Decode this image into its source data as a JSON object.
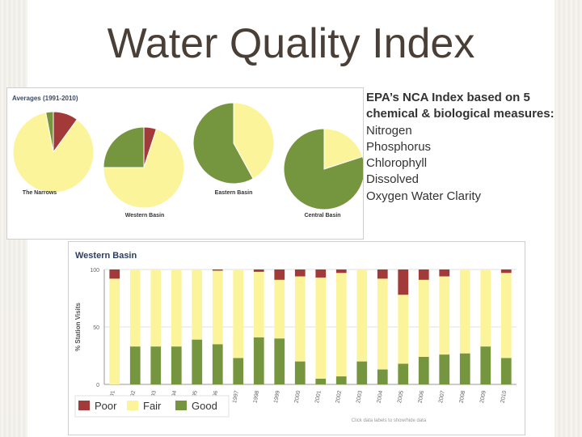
{
  "slide": {
    "title": "Water Quality Index",
    "description": {
      "heading": "EPA’s NCA Index based on 5 chemical & biological measures:",
      "items": [
        "Nitrogen",
        "Phosphorus",
        "Chlorophyll",
        "Dissolved",
        "Oxygen Water Clarity"
      ]
    }
  },
  "colors": {
    "poor": "#a33a3a",
    "fair": "#fbf49a",
    "good": "#76953f",
    "title": "#4a3f36"
  },
  "chart_data": [
    {
      "type": "pie",
      "title": "Averages (1991-2010)",
      "pies": [
        {
          "label": "The Narrows",
          "slices": [
            {
              "name": "Poor",
              "value": 10
            },
            {
              "name": "Fair",
              "value": 87
            },
            {
              "name": "Good",
              "value": 3
            }
          ]
        },
        {
          "label": "Western Basin",
          "slices": [
            {
              "name": "Poor",
              "value": 5
            },
            {
              "name": "Fair",
              "value": 70
            },
            {
              "name": "Good",
              "value": 25
            }
          ]
        },
        {
          "label": "Eastern Basin",
          "slices": [
            {
              "name": "Poor",
              "value": 0
            },
            {
              "name": "Fair",
              "value": 42
            },
            {
              "name": "Good",
              "value": 58
            }
          ]
        },
        {
          "label": "Central Basin",
          "slices": [
            {
              "name": "Poor",
              "value": 0
            },
            {
              "name": "Fair",
              "value": 20
            },
            {
              "name": "Good",
              "value": 80
            }
          ]
        }
      ]
    },
    {
      "type": "bar",
      "stacked": true,
      "title": "Western Basin",
      "ylabel": "% Station Visits",
      "ylim": [
        0,
        100
      ],
      "yticks": [
        0,
        50,
        100
      ],
      "categories": [
        "1991",
        "1992",
        "1993",
        "1994",
        "1995",
        "1996",
        "1997",
        "1998",
        "1999",
        "2000",
        "2001",
        "2002",
        "2003",
        "2004",
        "2005",
        "2006",
        "2007",
        "2008",
        "2009",
        "2010"
      ],
      "series": [
        {
          "name": "Good",
          "values": [
            0,
            33,
            33,
            33,
            39,
            35,
            23,
            41,
            40,
            20,
            5,
            7,
            20,
            13,
            18,
            24,
            26,
            27,
            33,
            23
          ]
        },
        {
          "name": "Fair",
          "values": [
            92,
            67,
            67,
            67,
            61,
            64,
            77,
            57,
            51,
            74,
            88,
            90,
            80,
            79,
            60,
            67,
            68,
            73,
            67,
            74
          ]
        },
        {
          "name": "Poor",
          "values": [
            8,
            0,
            0,
            0,
            0,
            1,
            0,
            2,
            9,
            6,
            7,
            3,
            0,
            8,
            22,
            9,
            6,
            0,
            0,
            3
          ]
        }
      ],
      "legend": {
        "position": "bottom-left",
        "entries": [
          "Poor",
          "Fair",
          "Good"
        ]
      },
      "footnote": "Click data labels to show/hide data"
    }
  ]
}
